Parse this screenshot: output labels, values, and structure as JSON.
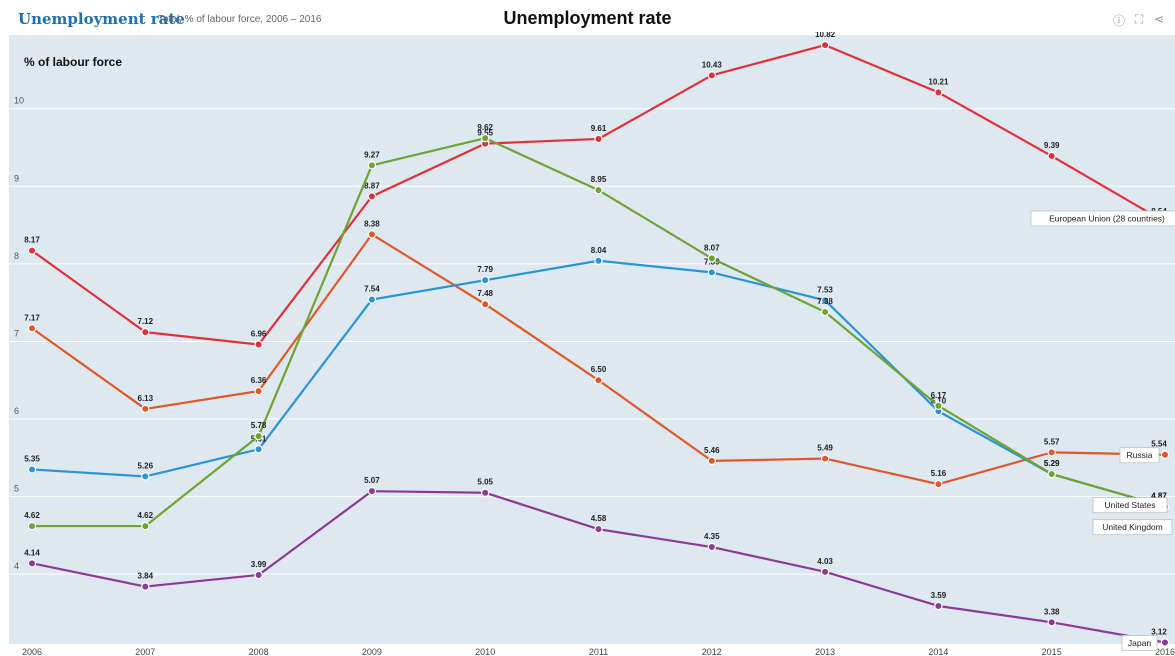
{
  "header": {
    "brand": "Unemployment rate",
    "subtitle": "Total, % of labour force, 2006 – 2016",
    "title": "Unemployment rate",
    "icons": [
      "info-icon",
      "fullscreen-icon",
      "share-icon"
    ]
  },
  "chart_data": {
    "type": "line",
    "title": "Unemployment rate",
    "ylabel": "% of labour force",
    "x": [
      2006,
      2007,
      2008,
      2009,
      2010,
      2011,
      2012,
      2013,
      2014,
      2015,
      2016
    ],
    "ylim": [
      3.1,
      10.95
    ],
    "yticks": [
      4,
      5,
      6,
      7,
      8,
      9,
      10
    ],
    "grid": true,
    "series": [
      {
        "name": "European Union (28 countries)",
        "color": "#e0313b",
        "values": [
          8.17,
          7.12,
          6.96,
          8.87,
          9.55,
          9.61,
          10.43,
          10.82,
          10.21,
          9.39,
          8.54
        ]
      },
      {
        "name": "Russia",
        "color": "#e0582a",
        "values": [
          7.17,
          6.13,
          6.36,
          8.38,
          7.48,
          6.5,
          5.46,
          5.49,
          5.16,
          5.57,
          5.54
        ]
      },
      {
        "name": "United States",
        "color": "#2a94d6",
        "values": [
          5.35,
          5.26,
          5.61,
          7.54,
          7.79,
          8.04,
          7.89,
          7.53,
          6.1,
          5.29,
          4.87
        ]
      },
      {
        "name": "United Kingdom",
        "color": "#6fa334",
        "values": [
          4.62,
          4.62,
          5.78,
          9.27,
          9.62,
          8.95,
          8.07,
          7.38,
          6.17,
          5.29,
          4.87
        ]
      },
      {
        "name": "Japan",
        "color": "#8e3a94",
        "values": [
          4.14,
          3.84,
          3.99,
          5.07,
          5.05,
          4.58,
          4.35,
          4.03,
          3.59,
          3.38,
          3.12
        ]
      }
    ],
    "data_labels": [
      [
        "8.17",
        "7.12",
        "6.96",
        "8.87",
        "9.55",
        "9.61",
        "10.43",
        "10.82",
        "10.21",
        "9.39",
        "8.54"
      ],
      [
        "7.17",
        "6.13",
        "6.36",
        "8.38",
        "7.48",
        "6.50",
        "5.46",
        "5.49",
        "5.16",
        "5.57",
        "5.54"
      ],
      [
        "5.35",
        "5.26",
        "5.61",
        "7.54",
        "7.79",
        "8.04",
        "7.89",
        "7.53",
        "6.10",
        "5.29",
        "4.87"
      ],
      [
        "4.62",
        "4.62",
        "5.78",
        "9.27",
        "9.62",
        "8.95",
        "8.07",
        "7.38",
        "6.17",
        "5.29",
        "4.87"
      ],
      [
        "4.14",
        "3.84",
        "3.99",
        "5.07",
        "5.05",
        "4.58",
        "4.35",
        "4.03",
        "3.59",
        "3.38",
        "3.12"
      ]
    ],
    "legend_placement": "end-of-line labels"
  }
}
